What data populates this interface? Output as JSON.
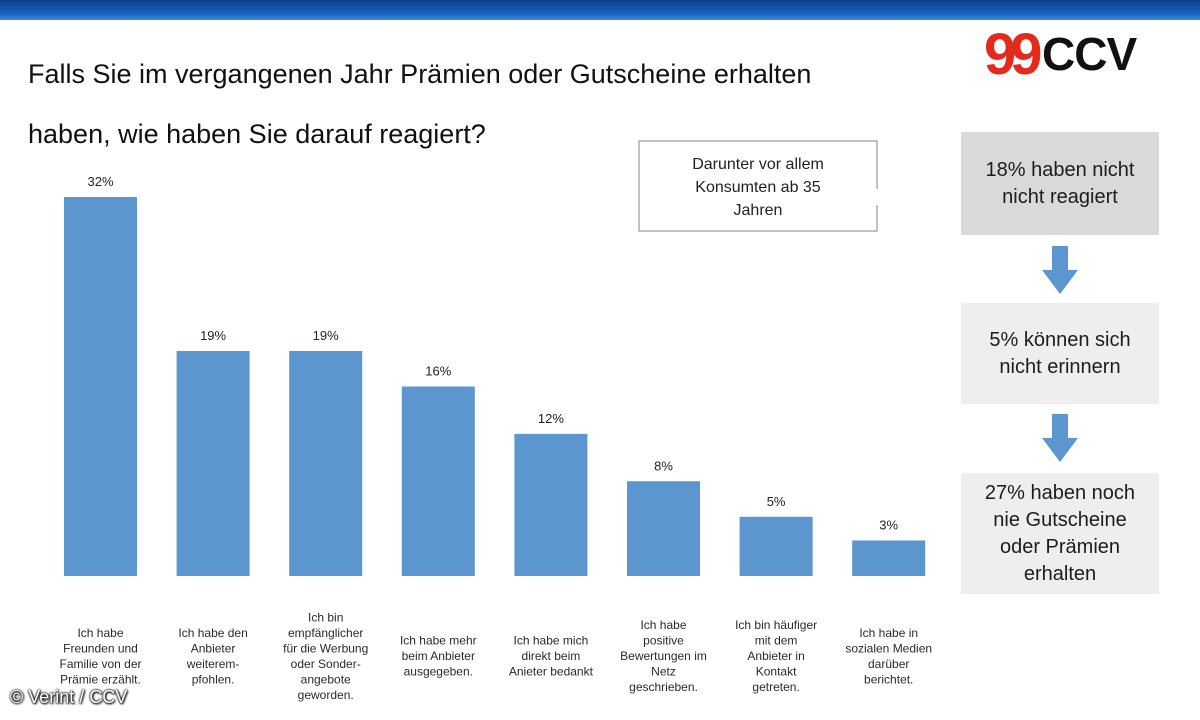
{
  "header": {
    "title_line1": "Falls Sie im vergangenen Jahr Prämien oder Gutscheine erhalten",
    "title_line2": "haben, wie haben Sie darauf reagiert?",
    "logo_text": "CCV",
    "logo_quote": "99"
  },
  "callout": {
    "text_lines": [
      "Darunter vor allem",
      "Konsumten ab 35",
      "Jahren"
    ]
  },
  "side_boxes": [
    {
      "lines": [
        "18% haben nicht",
        "nicht reagiert"
      ]
    },
    {
      "lines": [
        "5% können sich",
        "nicht erinnern"
      ]
    },
    {
      "lines": [
        "27% haben noch",
        "nie Gutscheine",
        "oder Prämien",
        "erhalten"
      ]
    }
  ],
  "credit": {
    "text": "Verint / CCV",
    "icon": "copyright-icon"
  },
  "colors": {
    "bar": "#5b96cf",
    "arrow": "#5b96cf",
    "top_band": "#1a64c4",
    "logo_red": "#e42a1d",
    "logo_black": "#111111"
  },
  "chart_data": {
    "type": "bar",
    "ylim": [
      0,
      35
    ],
    "values": [
      32,
      19,
      19,
      16,
      12,
      8,
      5,
      3
    ],
    "value_labels": [
      "32%",
      "19%",
      "19%",
      "16%",
      "12%",
      "8%",
      "5%",
      "3%"
    ],
    "categories": [
      [
        "Ich habe",
        "Freunden und",
        "Familie von der",
        "Prämie erzählt."
      ],
      [
        "Ich habe den",
        "Anbieter",
        "weiterem-",
        "pfohlen."
      ],
      [
        "Ich bin",
        "empfänglicher",
        "für die Werbung",
        "oder Sonder-",
        "angebote",
        "geworden."
      ],
      [
        "Ich habe mehr",
        "beim Anbieter",
        "ausgegeben."
      ],
      [
        "Ich habe mich",
        "direkt beim",
        "Anieter bedankt"
      ],
      [
        "Ich habe",
        "positive",
        "Bewertungen im",
        "Netz",
        "geschrieben."
      ],
      [
        "Ich bin häufiger",
        "mit dem",
        "Anbieter in",
        "Kontakt",
        "getreten."
      ],
      [
        "Ich habe in",
        "sozialen Medien",
        "darüber",
        "berichtet."
      ]
    ],
    "grid": false,
    "legend": "none"
  }
}
